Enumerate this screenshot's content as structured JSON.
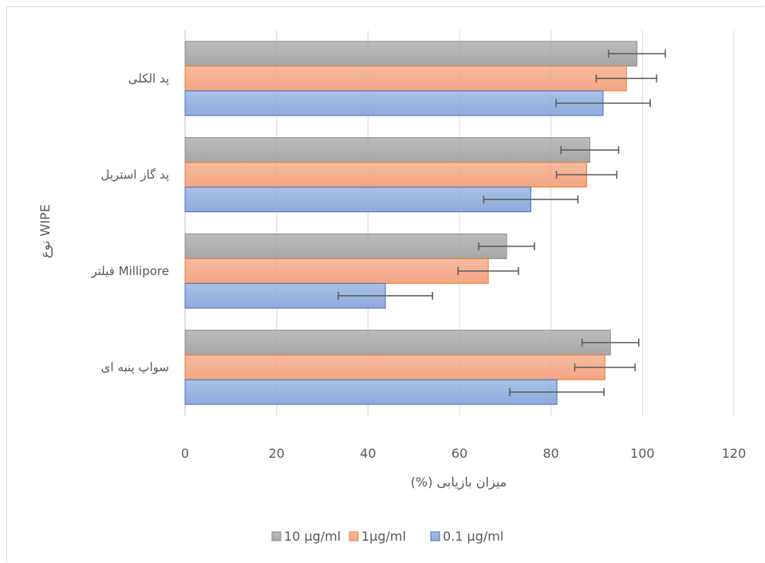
{
  "chart_data": {
    "type": "bar",
    "orientation": "horizontal",
    "categories": [
      "پد الکلی",
      "پد گاز استریل",
      "فیلتر Millipore",
      "سواپ پنبه ای"
    ],
    "series": [
      {
        "name": "10 µg/ml",
        "color": "#a6a6a6",
        "values": [
          98.8,
          88.5,
          70.3,
          93.0
        ],
        "errors": [
          6.2,
          6.3,
          6.1,
          6.2
        ]
      },
      {
        "name": "1µg/ml",
        "color": "#f4a582",
        "values": [
          96.5,
          87.8,
          66.3,
          91.8
        ],
        "errors": [
          6.6,
          6.6,
          6.6,
          6.6
        ]
      },
      {
        "name": "0.1 µg/ml",
        "color": "#8eaadb",
        "values": [
          91.4,
          75.6,
          43.8,
          81.3
        ],
        "errors": [
          10.3,
          10.3,
          10.3,
          10.3
        ]
      }
    ],
    "xlim": [
      0,
      120
    ],
    "xticks": [
      "0",
      "20",
      "40",
      "60",
      "80",
      "100",
      "120"
    ],
    "xlabel": "میزان بازیابی (%)",
    "ylabel": "نوع WIPE",
    "grid": true,
    "legend_position": "bottom"
  }
}
